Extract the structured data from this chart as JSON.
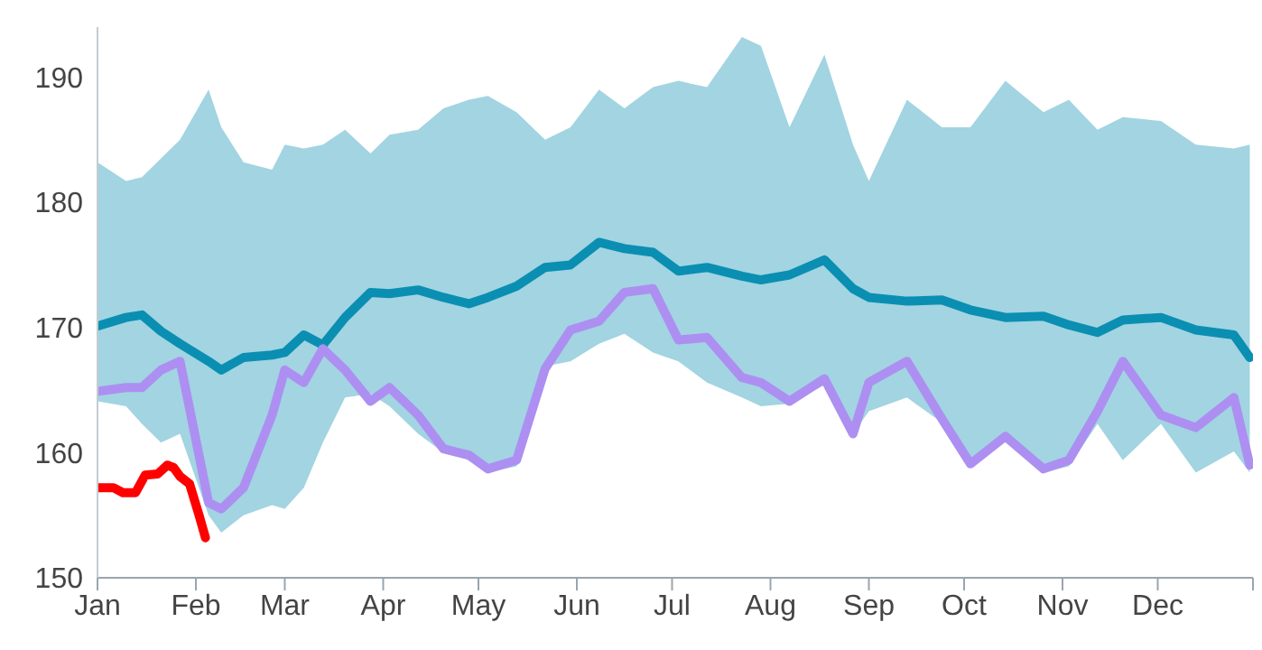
{
  "chart_data": {
    "type": "line",
    "line_style": "solid",
    "x": [
      "--01-01",
      "--01-10",
      "--01-15",
      "--01-21",
      "--01-27",
      "--02-05",
      "--02-09",
      "--02-16",
      "--02-25",
      "--03-01",
      "--03-07",
      "--03-13",
      "--03-20",
      "--03-28",
      "--04-03",
      "--04-12",
      "--04-20",
      "--04-28",
      "--05-04",
      "--05-13",
      "--05-22",
      "--05-30",
      "--06-08",
      "--06-16",
      "--06-25",
      "--07-03",
      "--07-12",
      "--07-23",
      "--07-29",
      "--08-07",
      "--08-18",
      "--08-27",
      "--09-01",
      "--09-13",
      "--09-24",
      "--10-03",
      "--10-14",
      "--10-26",
      "--11-03",
      "--11-12",
      "--11-20",
      "--12-02",
      "--12-13",
      "--12-25",
      "--12-30"
    ],
    "xlim": [
      "--01-01",
      "--12-31"
    ],
    "xticks": [
      {
        "value": "--01-01",
        "label": "Jan"
      },
      {
        "value": "--02-01",
        "label": "Feb"
      },
      {
        "value": "--03-01",
        "label": "Mar"
      },
      {
        "value": "--04-01",
        "label": "Apr"
      },
      {
        "value": "--05-01",
        "label": "May"
      },
      {
        "value": "--06-01",
        "label": "Jun"
      },
      {
        "value": "--07-01",
        "label": "Jul"
      },
      {
        "value": "--08-01",
        "label": "Aug"
      },
      {
        "value": "--09-01",
        "label": "Sep"
      },
      {
        "value": "--10-01",
        "label": "Oct"
      },
      {
        "value": "--11-01",
        "label": "Nov"
      },
      {
        "value": "--12-01",
        "label": "Dec"
      },
      {
        "value": "--12-31",
        "label": null
      }
    ],
    "ylim": [
      150,
      194
    ],
    "yticks": [
      150,
      160,
      170,
      180,
      190
    ],
    "series": [
      {
        "color": "#0a8fb2",
        "values": [
          170.1,
          170.8,
          171,
          169.7,
          168.7,
          167.3,
          166.6,
          167.6,
          167.8,
          168,
          169.4,
          168.6,
          170.8,
          172.8,
          172.7,
          173,
          172.4,
          171.9,
          172.4,
          173.3,
          174.8,
          175,
          176.8,
          176.3,
          176,
          174.5,
          174.8,
          174.1,
          173.8,
          174.2,
          175.4,
          173.1,
          172.4,
          172.1,
          172.2,
          171.4,
          170.8,
          170.9,
          170.2,
          169.6,
          170.6,
          170.8,
          169.8,
          169.4,
          167.6
        ],
        "lower": [
          164.1,
          163.7,
          162.3,
          160.8,
          161.5,
          155,
          153.6,
          155,
          155.8,
          155.5,
          157.2,
          160.8,
          164.4,
          164.7,
          163.7,
          161.5,
          160,
          159.4,
          158.4,
          158.9,
          166.9,
          167.3,
          168.7,
          169.5,
          168,
          167.3,
          165.6,
          164.4,
          163.7,
          163.9,
          165.4,
          161.5,
          163.3,
          164.4,
          162.4,
          159.1,
          161.1,
          158.4,
          158.9,
          162.3,
          159.4,
          162.3,
          158.4,
          160.1,
          158.4
        ],
        "upper": [
          183.2,
          181.7,
          182,
          183.5,
          185,
          189,
          186,
          183.2,
          182.6,
          184.6,
          184.3,
          184.6,
          185.8,
          183.9,
          185.4,
          185.8,
          187.5,
          188.2,
          188.5,
          187.2,
          185,
          186,
          189,
          187.5,
          189.2,
          189.7,
          189.2,
          193.2,
          192.5,
          186,
          191.8,
          184.6,
          181.7,
          188.2,
          186,
          186,
          189.7,
          187.2,
          188.2,
          185.8,
          186.8,
          186.5,
          184.6,
          184.3,
          184.6
        ]
      },
      {
        "color": "#ad8ff2",
        "values": [
          164.9,
          165.2,
          165.2,
          166.6,
          167.3,
          156,
          155.5,
          157.2,
          163,
          166.6,
          165.6,
          168.3,
          166.6,
          164.1,
          165.2,
          163,
          160.3,
          159.8,
          158.7,
          159.4,
          166.7,
          169.8,
          170.5,
          172.8,
          173.1,
          169,
          169.2,
          166,
          165.6,
          164.1,
          165.9,
          161.5,
          165.6,
          167.3,
          162.7,
          159.1,
          161.3,
          158.7,
          159.4,
          163.3,
          167.3,
          163,
          162,
          164.4,
          159
        ]
      },
      {
        "color": "#ff0000",
        "x": [
          "--01-01",
          "--01-06",
          "--01-09",
          "--01-13",
          "--01-16",
          "--01-20",
          "--01-23",
          "--01-25",
          "--01-27",
          "--01-30",
          "--02-02",
          "--02-04"
        ],
        "values": [
          157.2,
          157.2,
          156.8,
          156.8,
          158.2,
          158.3,
          159,
          158.8,
          158.1,
          157.5,
          155,
          153.2
        ]
      }
    ]
  }
}
